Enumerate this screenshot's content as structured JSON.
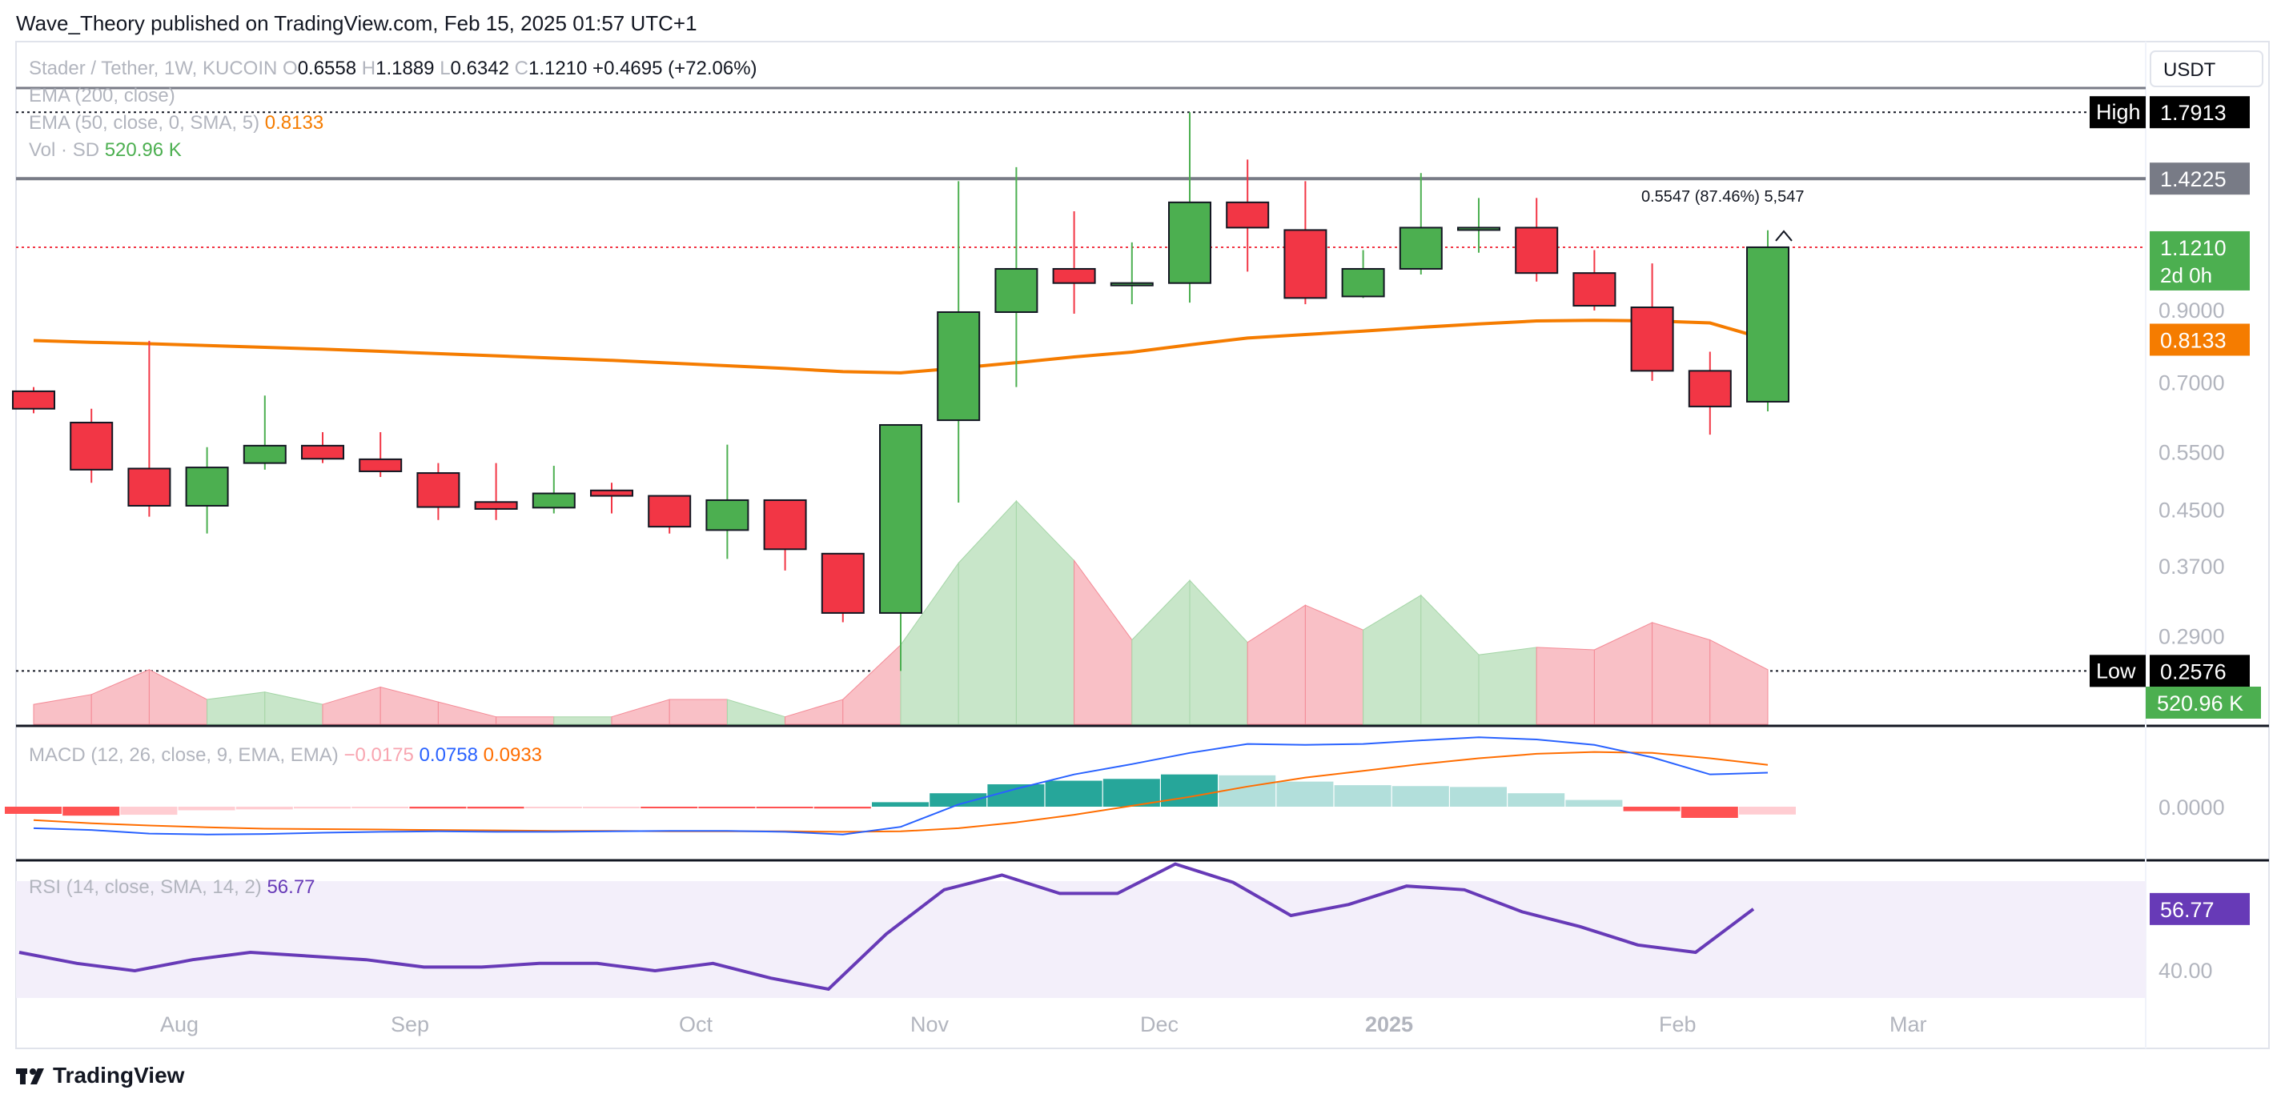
{
  "header": {
    "published": "Wave_Theory published on TradingView.com, Feb 15, 2025 01:57 UTC+1",
    "symbol": "Stader / Tether, 1W, KUCOIN",
    "ohlc": [
      {
        "k": "O",
        "v": "0.6558"
      },
      {
        "k": "H",
        "v": "1.1889"
      },
      {
        "k": "L",
        "v": "0.6342"
      },
      {
        "k": "C",
        "v": "1.1210"
      }
    ],
    "change": "+0.4695 (+72.06%)",
    "currency": "USDT"
  },
  "legend": {
    "ema200": "EMA (200, close)",
    "ema50": "EMA (50, close, 0, SMA, 5)",
    "ema50_value": "0.8133",
    "vol": "Vol · SD",
    "vol_value": "520.96 K"
  },
  "measure_label": "0.5547 (87.46%) 5,547",
  "price_axis": {
    "ticks": [
      "0.9000",
      "0.7000",
      "0.5500",
      "0.4500",
      "0.3700",
      "0.2900"
    ],
    "high_label": "High",
    "high_value": "1.7913",
    "line_value": "1.4225",
    "last_value": "1.1210",
    "countdown": "2d 0h",
    "ema_value": "0.8133",
    "low_label": "Low",
    "low_value": "0.2576",
    "vol_value": "520.96 K"
  },
  "macd_legend": {
    "label": "MACD (12, 26, close, 9, EMA, EMA)",
    "hist": "−0.0175",
    "macd": "0.0758",
    "signal": "0.0933",
    "axis_tick": "0.0000"
  },
  "rsi_legend": {
    "label": "RSI (14, close, SMA, 14, 2)",
    "value": "56.77",
    "axis_tick": "40.00",
    "axis_value": "56.77"
  },
  "time_axis": [
    "Aug",
    "Sep",
    "Oct",
    "Nov",
    "Dec",
    "2025",
    "Feb",
    "Mar"
  ],
  "colors": {
    "up": "#4caf50",
    "down": "#f23645",
    "ema50": "#f57c00",
    "macd_line": "#2962ff",
    "signal_line": "#ff6d00",
    "rsi_line": "#673ab7",
    "rsi_band": "#f3effa",
    "hist_up_strong": "#26a69a",
    "hist_up_weak": "#b2dfdb",
    "hist_down_strong": "#ff5252",
    "hist_down_weak": "#ffcdd2"
  },
  "brand": "TradingView",
  "chart_data": {
    "type": "candlestick",
    "title": "Stader / Tether, 1W, KUCOIN",
    "y_scale": "log",
    "high": 1.7913,
    "low": 0.2576,
    "level": 1.4225,
    "candles": [
      {
        "o": 0.68,
        "h": 0.69,
        "l": 0.63,
        "c": 0.64
      },
      {
        "o": 0.61,
        "h": 0.64,
        "l": 0.495,
        "c": 0.518
      },
      {
        "o": 0.52,
        "h": 0.81,
        "l": 0.44,
        "c": 0.457
      },
      {
        "o": 0.457,
        "h": 0.56,
        "l": 0.415,
        "c": 0.522
      },
      {
        "o": 0.53,
        "h": 0.67,
        "l": 0.518,
        "c": 0.563
      },
      {
        "o": 0.563,
        "h": 0.59,
        "l": 0.53,
        "c": 0.538
      },
      {
        "o": 0.537,
        "h": 0.59,
        "l": 0.505,
        "c": 0.515
      },
      {
        "o": 0.512,
        "h": 0.53,
        "l": 0.435,
        "c": 0.455
      },
      {
        "o": 0.463,
        "h": 0.53,
        "l": 0.435,
        "c": 0.452
      },
      {
        "o": 0.454,
        "h": 0.525,
        "l": 0.445,
        "c": 0.477
      },
      {
        "o": 0.482,
        "h": 0.495,
        "l": 0.445,
        "c": 0.473
      },
      {
        "o": 0.473,
        "h": 0.473,
        "l": 0.415,
        "c": 0.425
      },
      {
        "o": 0.42,
        "h": 0.565,
        "l": 0.38,
        "c": 0.466
      },
      {
        "o": 0.466,
        "h": 0.466,
        "l": 0.365,
        "c": 0.393
      },
      {
        "o": 0.387,
        "h": 0.387,
        "l": 0.305,
        "c": 0.315
      },
      {
        "o": 0.315,
        "h": 0.605,
        "l": 0.2576,
        "c": 0.605
      },
      {
        "o": 0.615,
        "h": 1.41,
        "l": 0.462,
        "c": 0.895
      },
      {
        "o": 0.895,
        "h": 1.48,
        "l": 0.69,
        "c": 1.04
      },
      {
        "o": 1.04,
        "h": 1.27,
        "l": 0.89,
        "c": 0.99
      },
      {
        "o": 0.99,
        "h": 1.14,
        "l": 0.92,
        "c": 0.99
      },
      {
        "o": 0.99,
        "h": 1.7913,
        "l": 0.925,
        "c": 1.31
      },
      {
        "o": 1.31,
        "h": 1.52,
        "l": 1.03,
        "c": 1.2
      },
      {
        "o": 1.19,
        "h": 1.41,
        "l": 0.92,
        "c": 0.94
      },
      {
        "o": 0.945,
        "h": 1.11,
        "l": 0.94,
        "c": 1.04
      },
      {
        "o": 1.04,
        "h": 1.45,
        "l": 1.02,
        "c": 1.2
      },
      {
        "o": 1.2,
        "h": 1.33,
        "l": 1.1,
        "c": 1.2
      },
      {
        "o": 1.2,
        "h": 1.33,
        "l": 0.995,
        "c": 1.025
      },
      {
        "o": 1.025,
        "h": 1.11,
        "l": 0.9,
        "c": 0.915
      },
      {
        "o": 0.91,
        "h": 1.06,
        "l": 0.705,
        "c": 0.73
      },
      {
        "o": 0.73,
        "h": 0.78,
        "l": 0.585,
        "c": 0.645
      },
      {
        "o": 0.6558,
        "h": 1.1889,
        "l": 0.6342,
        "c": 1.121
      }
    ],
    "ema50": [
      0.811,
      0.806,
      0.802,
      0.797,
      0.792,
      0.787,
      0.781,
      0.775,
      0.769,
      0.763,
      0.757,
      0.75,
      0.743,
      0.736,
      0.728,
      0.725,
      0.737,
      0.751,
      0.766,
      0.779,
      0.799,
      0.818,
      0.828,
      0.838,
      0.849,
      0.859,
      0.868,
      0.87,
      0.868,
      0.862,
      0.8133
    ],
    "volume": [
      8,
      12,
      22,
      10,
      13,
      8,
      15,
      9,
      3,
      3,
      3,
      10,
      10,
      3,
      10,
      32,
      65,
      90,
      66,
      34,
      58,
      33,
      48,
      38,
      52,
      28,
      31,
      30,
      41,
      34,
      22
    ],
    "macd_hist": [
      -0.016,
      -0.02,
      -0.018,
      -0.008,
      -0.006,
      -0.004,
      -0.003,
      -0.004,
      -0.004,
      -0.003,
      -0.002,
      -0.002,
      -0.002,
      -0.002,
      -0.004,
      0.01,
      0.03,
      0.05,
      0.058,
      0.062,
      0.072,
      0.07,
      0.056,
      0.048,
      0.046,
      0.044,
      0.03,
      0.015,
      -0.01,
      -0.025,
      -0.0175
    ],
    "macd_line": [
      -0.048,
      -0.052,
      -0.06,
      -0.062,
      -0.061,
      -0.058,
      -0.056,
      -0.055,
      -0.056,
      -0.056,
      -0.055,
      -0.054,
      -0.054,
      -0.056,
      -0.062,
      -0.045,
      0.005,
      0.04,
      0.072,
      0.095,
      0.12,
      0.14,
      0.138,
      0.14,
      0.148,
      0.155,
      0.15,
      0.138,
      0.11,
      0.072,
      0.0758
    ],
    "signal_line": [
      -0.03,
      -0.037,
      -0.042,
      -0.046,
      -0.049,
      -0.05,
      -0.051,
      -0.052,
      -0.053,
      -0.054,
      -0.054,
      -0.055,
      -0.055,
      -0.055,
      -0.056,
      -0.055,
      -0.048,
      -0.035,
      -0.018,
      0.002,
      0.022,
      0.045,
      0.065,
      0.08,
      0.095,
      0.108,
      0.118,
      0.122,
      0.12,
      0.108,
      0.0933
    ],
    "rsi": [
      45,
      42,
      40,
      43,
      45,
      44,
      43,
      41,
      41,
      42,
      42,
      40,
      42,
      38,
      35,
      50,
      62,
      66,
      61,
      61,
      69,
      64,
      55,
      58,
      63,
      62,
      56,
      52,
      47,
      45,
      56.77
    ]
  }
}
